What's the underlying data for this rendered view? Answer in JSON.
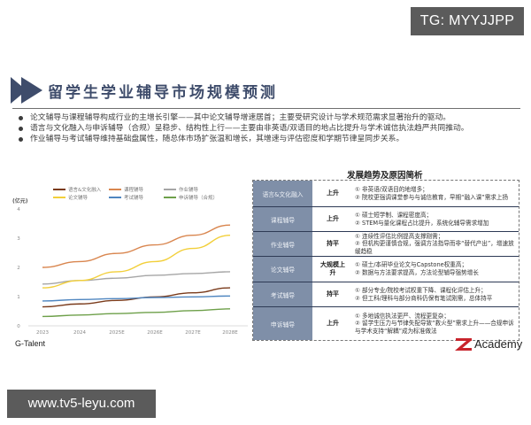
{
  "overlays": {
    "tg_badge": "TG: MYYJJPP",
    "site_badge": "www.tv5-leyu.com"
  },
  "slide": {
    "title": "留学生学业辅导市场规模预测",
    "icon": "double-chevron-right-icon",
    "bullets": [
      "论文辅导与课程辅导构成行业的主增长引擎——其中论文辅导增速居首；主要受研究设计与学术规范需求显著抬升的驱动。",
      "语言与文化融入与申诉辅导（合规）呈稳步、结构性上行——主要由非英语/双语目的地占比提升与学术诚信执法趋严共同推动。",
      "作业辅导与考试辅导维持基础盘属性，随总体市场扩张温和增长，其增速与评估密度和学期节律呈同步关系。"
    ],
    "source": "G-Talent",
    "logo_text": "Academy",
    "colors": {
      "title": "#3e4c6b",
      "table_label_bg": "#7f8fa8",
      "table_divider": "#2e3a55"
    }
  },
  "chart_data": {
    "type": "line",
    "title": "",
    "xlabel": "",
    "ylabel": "(亿元)",
    "x": [
      "2023",
      "2024",
      "2025E",
      "2026E",
      "2027E",
      "2028E"
    ],
    "ylim": [
      0,
      4
    ],
    "yticks": [
      "0",
      "1",
      "2",
      "3",
      "4"
    ],
    "grid": false,
    "legend_position": "top",
    "series": [
      {
        "name": "语言&文化融入",
        "color": "#7a3b1b",
        "values": [
          0.65,
          0.75,
          0.87,
          0.99,
          1.13,
          1.3
        ]
      },
      {
        "name": "课程辅导",
        "color": "#d9864f",
        "values": [
          2.0,
          2.2,
          2.48,
          2.77,
          3.1,
          3.45
        ]
      },
      {
        "name": "作业辅导",
        "color": "#a6a6a6",
        "values": [
          1.43,
          1.55,
          1.63,
          1.73,
          1.79,
          1.85
        ]
      },
      {
        "name": "论文辅导",
        "color": "#f2cf3a",
        "values": [
          1.3,
          1.55,
          1.85,
          2.2,
          2.65,
          3.1
        ]
      },
      {
        "name": "考试辅导",
        "color": "#4f86c0",
        "values": [
          0.85,
          0.9,
          0.93,
          0.97,
          0.99,
          1.02
        ]
      },
      {
        "name": "申诉辅导（合规）",
        "color": "#6ea04a",
        "values": [
          0.32,
          0.37,
          0.42,
          0.46,
          0.52,
          0.58
        ]
      }
    ]
  },
  "analysis": {
    "title": "发展趋势及原因简析",
    "rows": [
      {
        "label": "语言&文化融入",
        "trend": "上升",
        "desc": [
          "① 非英语/双语目的地增多；",
          "② 院校更强调课堂参与与诚信教育，早期“融入课”需求上扬"
        ]
      },
      {
        "label": "课程辅导",
        "trend": "上升",
        "desc": [
          "① 硕士短学制、课程密度高；",
          "② STEM与量化课程占比提升，系统化辅导需求增加"
        ]
      },
      {
        "label": "作业辅导",
        "trend": "持平",
        "desc": [
          "① 连续性评估比例提高支撑刚需；",
          "② 但机构更谨慎合规，强调方法指导而非“替代产出”，增速放缓趋稳"
        ]
      },
      {
        "label": "论文辅导",
        "trend": "大规模上升",
        "desc": [
          "① 硕士/本研毕业论文与Capstone权重高；",
          "② 数据与方法要求提高，方法论型辅导强势增长"
        ]
      },
      {
        "label": "考试辅导",
        "trend": "持平",
        "desc": [
          "① 部分专业/院校考试权重下降、课程化评估上升；",
          "② 但工科/理科与部分商科仍保有笔试刚需，总体持平"
        ]
      },
      {
        "label": "申诉辅导",
        "trend": "上升",
        "desc": [
          "① 多地诚信执法更严、流程更复杂；",
          "② 留学生压力与节律失配导致“救火型”需求上升——合规申诉与学术支持“解耦”成为标准做法"
        ]
      }
    ]
  }
}
